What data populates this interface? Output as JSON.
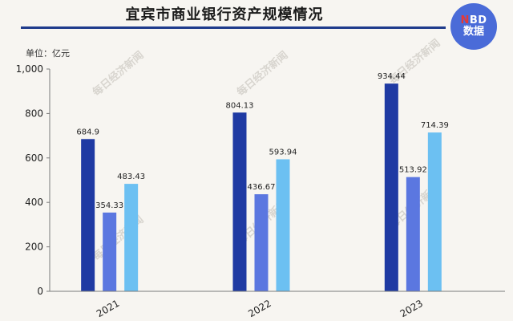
{
  "header": {
    "title": "宜宾市商业银行资产规模情况",
    "badge_line1_n": "N",
    "badge_line1_rest": "BD",
    "badge_line2": "数据",
    "unit": "单位：亿元",
    "watermark": "每日经济新闻"
  },
  "colors": {
    "series_1": "#1f3aa3",
    "series_2": "#5b77e0",
    "series_3": "#6cc0f2",
    "rule": "#1f3b8c",
    "badge": "#4a6bd8"
  },
  "chart_data": {
    "type": "bar",
    "categories": [
      "2021",
      "2022",
      "2023"
    ],
    "series": [
      {
        "values": [
          684.9,
          804.13,
          934.44
        ],
        "labels": [
          "684.9",
          "804.13",
          "934.44"
        ]
      },
      {
        "values": [
          354.33,
          436.67,
          513.92
        ],
        "labels": [
          "354.33",
          "436.67",
          "513.92"
        ]
      },
      {
        "values": [
          483.43,
          593.94,
          714.39
        ],
        "labels": [
          "483.43",
          "593.94",
          "714.39"
        ]
      }
    ],
    "ylim": [
      0,
      1000
    ],
    "yticks": [
      0,
      200,
      400,
      600,
      800,
      1000
    ],
    "ytick_labels": [
      "0",
      "200",
      "400",
      "600",
      "800",
      "1,000"
    ],
    "grid": false,
    "legend": "none"
  }
}
